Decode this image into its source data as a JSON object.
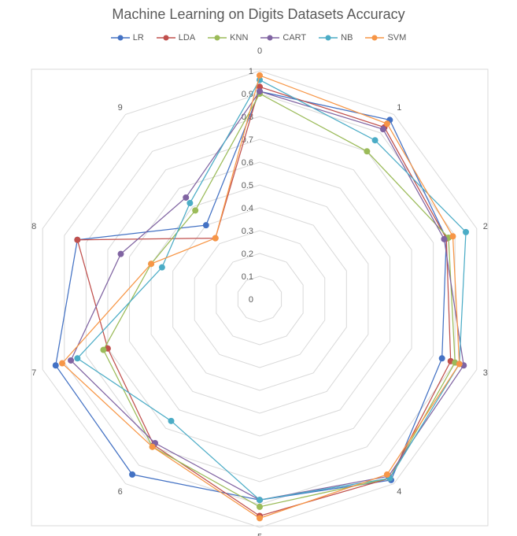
{
  "chart_data": {
    "type": "radar",
    "title": "Machine Learning on Digits Datasets Accuracy",
    "categories": [
      "0",
      "1",
      "2",
      "3",
      "4",
      "5",
      "6",
      "7",
      "8",
      "9"
    ],
    "scale": {
      "min": 0,
      "max": 1,
      "ticks": [
        "0",
        "0.1",
        "0.2",
        "0.3",
        "0.4",
        "0.5",
        "0.6",
        "0.7",
        "0.8",
        "0.9",
        "1"
      ]
    },
    "legend_position": "top",
    "series": [
      {
        "name": "LR",
        "color": "#4472C4",
        "values": [
          0.91,
          0.97,
          0.86,
          0.84,
          0.98,
          0.88,
          0.95,
          0.94,
          0.84,
          0.4
        ]
      },
      {
        "name": "LDA",
        "color": "#C0504D",
        "values": [
          0.93,
          0.93,
          0.86,
          0.88,
          0.97,
          0.95,
          0.79,
          0.7,
          0.84,
          0.33
        ]
      },
      {
        "name": "KNN",
        "color": "#9BBB59",
        "values": [
          0.9,
          0.8,
          0.87,
          0.9,
          0.97,
          0.91,
          0.8,
          0.72,
          0.5,
          0.48
        ]
      },
      {
        "name": "CART",
        "color": "#8064A2",
        "values": [
          0.91,
          0.92,
          0.85,
          0.94,
          0.96,
          0.88,
          0.78,
          0.87,
          0.64,
          0.55
        ]
      },
      {
        "name": "NB",
        "color": "#4BACC6",
        "values": [
          0.96,
          0.86,
          0.95,
          0.92,
          0.97,
          0.88,
          0.66,
          0.84,
          0.45,
          0.52
        ]
      },
      {
        "name": "SVM",
        "color": "#F79646",
        "values": [
          0.98,
          0.95,
          0.89,
          0.92,
          0.95,
          0.96,
          0.8,
          0.91,
          0.5,
          0.33
        ]
      }
    ]
  }
}
